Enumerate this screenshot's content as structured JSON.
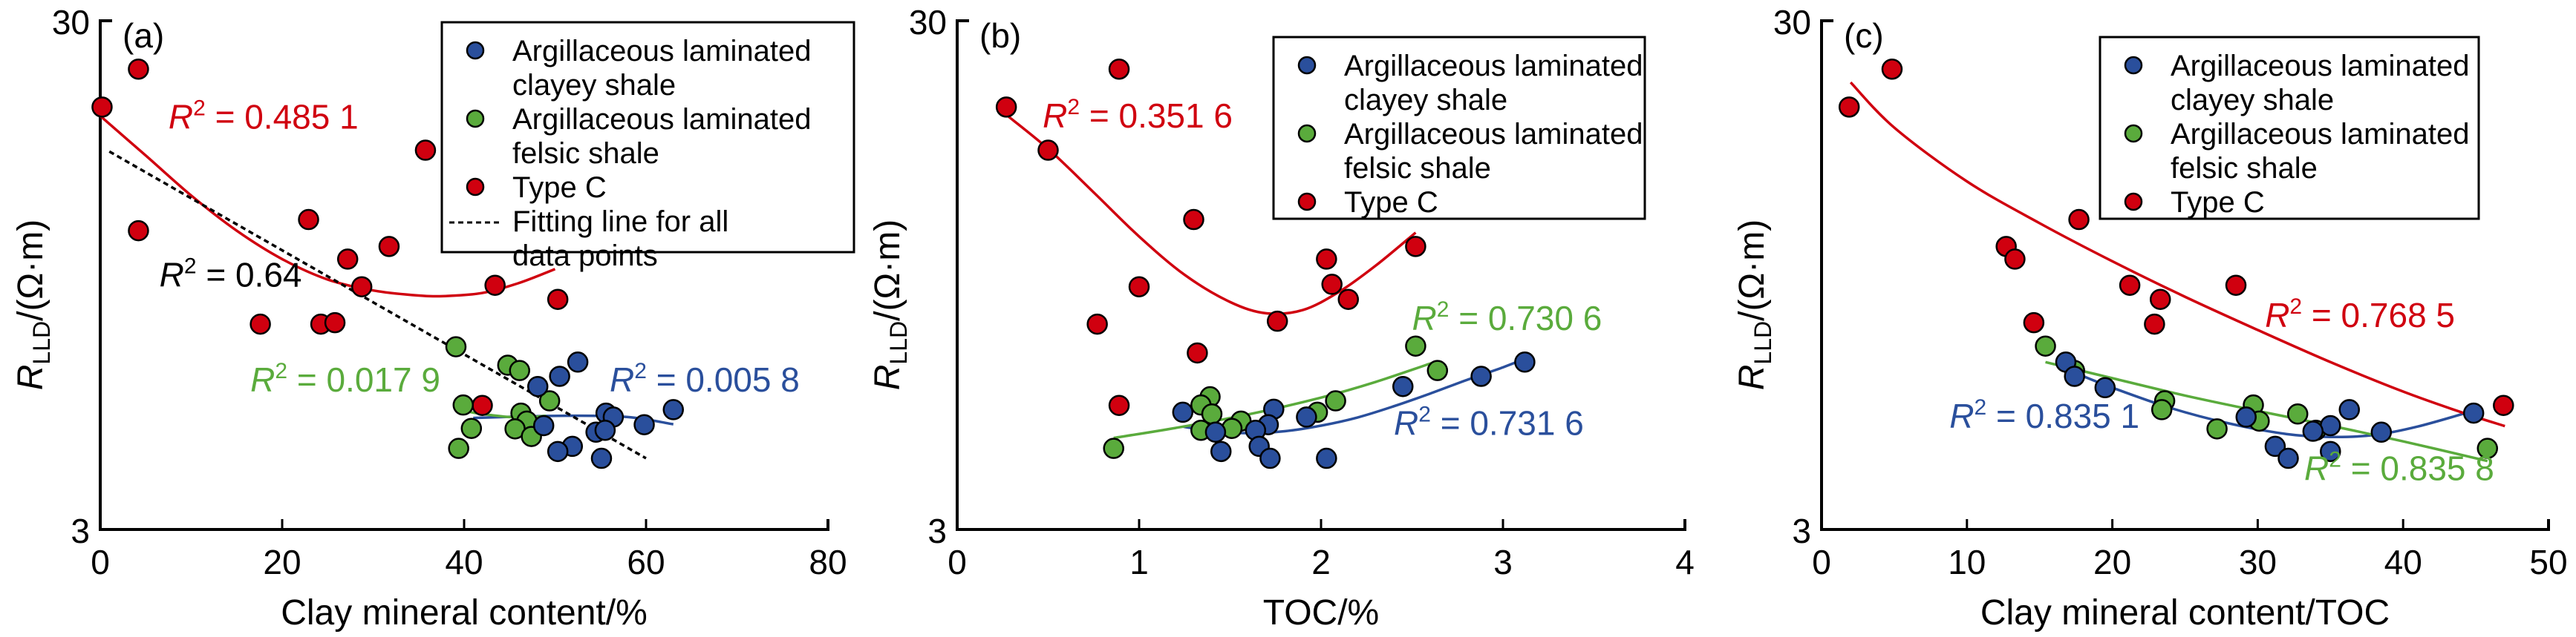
{
  "colors": {
    "clayey": "#2a4f9c",
    "felsic": "#5aab3c",
    "typeC": "#d0000f",
    "all": "#000000"
  },
  "legend": {
    "clayey": [
      "Argillaceous laminated",
      "clayey shale"
    ],
    "felsic": [
      "Argillaceous laminated",
      "felsic shale"
    ],
    "typeC": [
      "Type C"
    ],
    "all": [
      "Fitting line for all",
      "data points"
    ]
  },
  "y_axis": {
    "label_main": "R",
    "label_sub": "LLD",
    "label_unit": "/(Ω·m)",
    "ticks": [
      "30",
      "3"
    ]
  },
  "chart_data": [
    {
      "id": "a",
      "type": "scatter",
      "panel_label": "(a)",
      "xlabel": "Clay mineral content/%",
      "ylabel": "RLLD/(Ω·m)",
      "xlim": [
        0,
        80
      ],
      "ylim": [
        3,
        30
      ],
      "yscale": "log",
      "xticks": [
        0,
        20,
        40,
        60,
        80
      ],
      "legend_position": "top-right",
      "legend_items": [
        "clayey",
        "felsic",
        "typeC",
        "all"
      ],
      "series": [
        {
          "name": "Argillaceous laminated clayey shale",
          "key": "clayey",
          "points": [
            [
              52.5,
              6.4
            ],
            [
              50.5,
              6.0
            ],
            [
              48.1,
              5.73
            ],
            [
              63,
              5.16
            ],
            [
              55.6,
              5.08
            ],
            [
              56.4,
              4.99
            ],
            [
              48.75,
              4.8
            ],
            [
              59.8,
              4.82
            ],
            [
              54.5,
              4.66
            ],
            [
              55.5,
              4.7
            ],
            [
              51.9,
              4.37
            ],
            [
              50.3,
              4.27
            ],
            [
              55.1,
              4.14
            ]
          ],
          "fit": [
            [
              41,
              4.97
            ],
            [
              46,
              5.0
            ],
            [
              52,
              5.02
            ],
            [
              58,
              4.99
            ],
            [
              63,
              4.83
            ]
          ],
          "r2": "0.005 8",
          "r2_at": [
            56,
            5.6
          ]
        },
        {
          "name": "Argillaceous laminated felsic shale",
          "key": "felsic",
          "points": [
            [
              39.1,
              6.86
            ],
            [
              44.8,
              6.31
            ],
            [
              46.1,
              6.16
            ],
            [
              49.4,
              5.37
            ],
            [
              39.9,
              5.27
            ],
            [
              46.25,
              5.08
            ],
            [
              46.9,
              4.9
            ],
            [
              40.8,
              4.74
            ],
            [
              45.6,
              4.73
            ],
            [
              47.4,
              4.57
            ],
            [
              39.4,
              4.33
            ]
          ],
          "fit": [
            [
              39.4,
              5.15
            ],
            [
              42,
              5.06
            ],
            [
              45,
              4.99
            ],
            [
              47,
              4.98
            ],
            [
              49,
              5.02
            ]
          ],
          "r2": "0.017 9",
          "r2_at": [
            16.5,
            5.6
          ]
        },
        {
          "name": "Type C",
          "key": "typeC",
          "points": [
            [
              4.2,
              24.1
            ],
            [
              0.2,
              20.3
            ],
            [
              35.75,
              16.7
            ],
            [
              4.2,
              11.6
            ],
            [
              22.9,
              12.2
            ],
            [
              31.75,
              10.8
            ],
            [
              27.2,
              10.2
            ],
            [
              28.75,
              9.0
            ],
            [
              43.4,
              9.06
            ],
            [
              50.3,
              8.5
            ],
            [
              17.6,
              7.6
            ],
            [
              24.25,
              7.6
            ],
            [
              25.8,
              7.65
            ],
            [
              42,
              5.26
            ]
          ],
          "fit": [
            [
              0,
              19.5
            ],
            [
              5,
              16.3
            ],
            [
              10,
              13.6
            ],
            [
              15,
              11.6
            ],
            [
              20,
              10.2
            ],
            [
              25,
              9.3
            ],
            [
              30,
              8.85
            ],
            [
              35,
              8.65
            ],
            [
              38,
              8.63
            ],
            [
              42,
              8.75
            ],
            [
              46,
              9.15
            ],
            [
              50,
              9.75
            ]
          ],
          "r2": "0.485 1",
          "r2_at": [
            7.5,
            18.4
          ]
        },
        {
          "name": "Fitting line for all data points",
          "key": "all",
          "dashed": true,
          "fit": [
            [
              1,
              16.6
            ],
            [
              60,
              4.14
            ]
          ],
          "r2": "0.64",
          "r2_at": [
            6.5,
            9.0
          ]
        }
      ]
    },
    {
      "id": "b",
      "type": "scatter",
      "panel_label": "(b)",
      "xlabel": "TOC/%",
      "ylabel": "RLLD/(Ω·m)",
      "xlim": [
        0,
        4
      ],
      "ylim": [
        3,
        30
      ],
      "yscale": "log",
      "xticks": [
        0,
        1,
        2,
        3,
        4
      ],
      "legend_position": "top-right",
      "legend_items": [
        "clayey",
        "felsic",
        "typeC"
      ],
      "series": [
        {
          "name": "Argillaceous laminated clayey shale",
          "key": "clayey",
          "points": [
            [
              3.12,
              6.4
            ],
            [
              2.88,
              6.0
            ],
            [
              2.45,
              5.73
            ],
            [
              1.24,
              5.1
            ],
            [
              1.74,
              5.17
            ],
            [
              1.92,
              4.99
            ],
            [
              1.71,
              4.82
            ],
            [
              1.42,
              4.66
            ],
            [
              1.64,
              4.7
            ],
            [
              1.66,
              4.37
            ],
            [
              1.45,
              4.27
            ],
            [
              1.72,
              4.14
            ],
            [
              2.03,
              4.14
            ]
          ],
          "fit": [
            [
              1.24,
              4.78
            ],
            [
              1.4,
              4.68
            ],
            [
              1.6,
              4.64
            ],
            [
              1.8,
              4.68
            ],
            [
              2.0,
              4.8
            ],
            [
              2.2,
              4.98
            ],
            [
              2.4,
              5.24
            ],
            [
              2.6,
              5.55
            ],
            [
              2.8,
              5.9
            ],
            [
              3.0,
              6.25
            ],
            [
              3.12,
              6.5
            ]
          ],
          "r2": "0.731 6",
          "r2_at": [
            2.4,
            4.6
          ]
        },
        {
          "name": "Argillaceous laminated felsic shale",
          "key": "felsic",
          "points": [
            [
              2.52,
              6.88
            ],
            [
              2.64,
              6.16
            ],
            [
              2.08,
              5.37
            ],
            [
              1.39,
              5.47
            ],
            [
              1.34,
              5.27
            ],
            [
              1.4,
              5.06
            ],
            [
              1.98,
              5.1
            ],
            [
              1.56,
              4.9
            ],
            [
              1.51,
              4.74
            ],
            [
              1.34,
              4.7
            ],
            [
              0.86,
              4.33
            ]
          ],
          "fit": [
            [
              0.86,
              4.54
            ],
            [
              1.2,
              4.75
            ],
            [
              1.6,
              5.05
            ],
            [
              2.0,
              5.45
            ],
            [
              2.3,
              5.85
            ],
            [
              2.64,
              6.43
            ]
          ],
          "r2": "0.730 6",
          "r2_at": [
            2.5,
            7.4
          ]
        },
        {
          "name": "Type C",
          "key": "typeC",
          "points": [
            [
              0.27,
              20.3
            ],
            [
              0.89,
              24.1
            ],
            [
              0.5,
              16.7
            ],
            [
              1.3,
              12.2
            ],
            [
              2.52,
              10.8
            ],
            [
              2.03,
              10.2
            ],
            [
              1.0,
              9.0
            ],
            [
              2.06,
              9.1
            ],
            [
              2.15,
              8.5
            ],
            [
              0.77,
              7.6
            ],
            [
              1.76,
              7.7
            ],
            [
              1.32,
              6.67
            ],
            [
              0.89,
              5.26
            ]
          ],
          "fit": [
            [
              0.27,
              19.6
            ],
            [
              0.5,
              16.8
            ],
            [
              0.75,
              13.8
            ],
            [
              1.0,
              11.3
            ],
            [
              1.25,
              9.5
            ],
            [
              1.5,
              8.4
            ],
            [
              1.7,
              7.98
            ],
            [
              1.9,
              8.1
            ],
            [
              2.1,
              8.8
            ],
            [
              2.3,
              9.9
            ],
            [
              2.52,
              11.5
            ]
          ],
          "r2": "0.351 6",
          "r2_at": [
            0.47,
            18.5
          ]
        }
      ]
    },
    {
      "id": "c",
      "type": "scatter",
      "panel_label": "(c)",
      "xlabel": "Clay mineral content/TOC",
      "ylabel": "RLLD/(Ω·m)",
      "xlim": [
        0,
        50
      ],
      "ylim": [
        3,
        30
      ],
      "yscale": "log",
      "xticks": [
        0,
        10,
        20,
        30,
        40,
        50
      ],
      "legend_position": "top-right",
      "legend_items": [
        "clayey",
        "felsic",
        "typeC"
      ],
      "series": [
        {
          "name": "Argillaceous laminated clayey shale",
          "key": "clayey",
          "points": [
            [
              16.8,
              6.4
            ],
            [
              17.4,
              6.0
            ],
            [
              19.5,
              5.7
            ],
            [
              29.2,
              4.99
            ],
            [
              36.3,
              5.16
            ],
            [
              35.0,
              4.8
            ],
            [
              38.5,
              4.66
            ],
            [
              44.85,
              5.08
            ],
            [
              31.2,
              4.37
            ],
            [
              32.1,
              4.14
            ],
            [
              35.0,
              4.27
            ],
            [
              33.8,
              4.68
            ]
          ],
          "fit": [
            [
              17.4,
              6.1
            ],
            [
              20,
              5.7
            ],
            [
              24,
              5.2
            ],
            [
              28,
              4.85
            ],
            [
              32,
              4.62
            ],
            [
              35,
              4.56
            ],
            [
              38,
              4.6
            ],
            [
              41,
              4.78
            ],
            [
              44.8,
              5.13
            ]
          ],
          "r2": "0.835 1",
          "r2_at": [
            8.8,
            4.75
          ]
        },
        {
          "name": "Argillaceous laminated felsic shale",
          "key": "felsic",
          "points": [
            [
              15.4,
              6.88
            ],
            [
              17.4,
              6.16
            ],
            [
              23.6,
              5.37
            ],
            [
              23.4,
              5.16
            ],
            [
              29.7,
              5.27
            ],
            [
              30.1,
              4.9
            ],
            [
              32.75,
              5.06
            ],
            [
              27.2,
              4.73
            ],
            [
              34.0,
              4.7
            ],
            [
              45.8,
              4.33
            ]
          ],
          "fit": [
            [
              15.4,
              6.4
            ],
            [
              20,
              5.95
            ],
            [
              25,
              5.5
            ],
            [
              30,
              5.13
            ],
            [
              35,
              4.8
            ],
            [
              40,
              4.47
            ],
            [
              45.8,
              4.09
            ]
          ],
          "r2": "0.835 8",
          "r2_at": [
            33.2,
            3.75
          ]
        },
        {
          "name": "Type C",
          "key": "typeC",
          "points": [
            [
              1.9,
              20.3
            ],
            [
              4.85,
              24.1
            ],
            [
              17.7,
              12.2
            ],
            [
              12.7,
              10.8
            ],
            [
              13.3,
              10.2
            ],
            [
              21.2,
              9.06
            ],
            [
              23.3,
              8.5
            ],
            [
              28.5,
              9.06
            ],
            [
              14.6,
              7.65
            ],
            [
              22.9,
              7.6
            ],
            [
              46.9,
              5.26
            ]
          ],
          "fit": [
            [
              2,
              22.7
            ],
            [
              5,
              18.5
            ],
            [
              10,
              14.5
            ],
            [
              15,
              12.0
            ],
            [
              20,
              10.1
            ],
            [
              25,
              8.6
            ],
            [
              30,
              7.4
            ],
            [
              35,
              6.4
            ],
            [
              40,
              5.6
            ],
            [
              44,
              5.1
            ],
            [
              47,
              4.79
            ]
          ],
          "r2": "0.768 5",
          "r2_at": [
            30.5,
            7.5
          ]
        }
      ]
    }
  ]
}
